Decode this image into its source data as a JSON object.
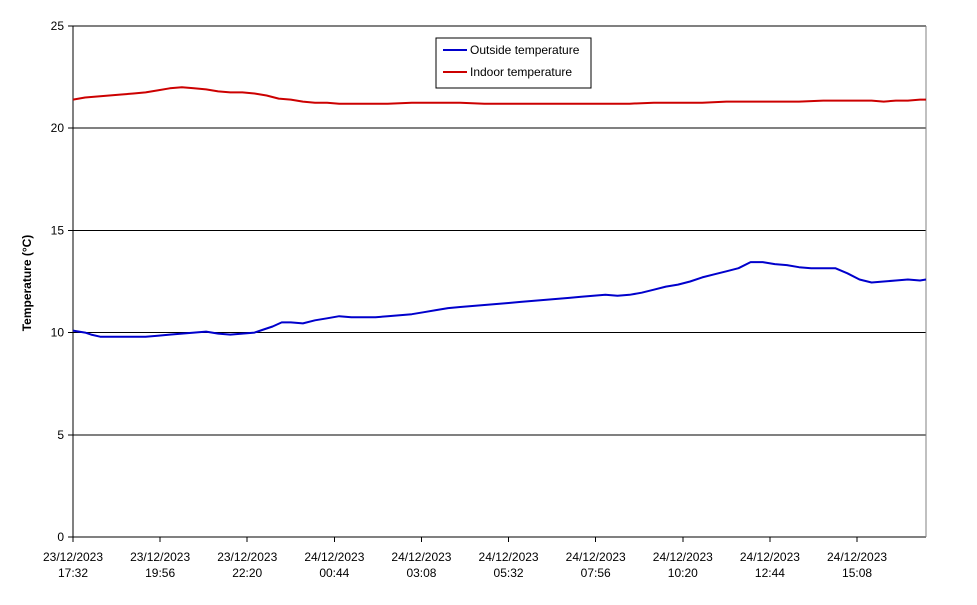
{
  "chart_data": {
    "type": "line",
    "title": "",
    "xlabel": "",
    "ylabel": "Temperature (°C)",
    "ylim": [
      0,
      25
    ],
    "yticks": [
      0,
      5,
      10,
      15,
      20,
      25
    ],
    "grid": "horizontal",
    "legend_position": "top-center",
    "x_tick_labels": [
      [
        "23/12/2023",
        "17:32"
      ],
      [
        "23/12/2023",
        "19:56"
      ],
      [
        "23/12/2023",
        "22:20"
      ],
      [
        "24/12/2023",
        "00:44"
      ],
      [
        "24/12/2023",
        "03:08"
      ],
      [
        "24/12/2023",
        "05:32"
      ],
      [
        "24/12/2023",
        "07:56"
      ],
      [
        "24/12/2023",
        "10:20"
      ],
      [
        "24/12/2023",
        "12:44"
      ],
      [
        "24/12/2023",
        "15:08"
      ]
    ],
    "x_range_minutes": [
      0,
      1410
    ],
    "x_tick_step_minutes": 144,
    "series": [
      {
        "name": "Outside temperature",
        "color": "#0000cc",
        "points": [
          [
            0,
            10.1
          ],
          [
            20,
            10.0
          ],
          [
            30,
            9.9
          ],
          [
            45,
            9.8
          ],
          [
            60,
            9.8
          ],
          [
            80,
            9.8
          ],
          [
            100,
            9.8
          ],
          [
            120,
            9.8
          ],
          [
            140,
            9.85
          ],
          [
            160,
            9.9
          ],
          [
            180,
            9.95
          ],
          [
            200,
            10.0
          ],
          [
            220,
            10.05
          ],
          [
            240,
            9.95
          ],
          [
            260,
            9.9
          ],
          [
            280,
            9.95
          ],
          [
            300,
            10.0
          ],
          [
            315,
            10.15
          ],
          [
            330,
            10.3
          ],
          [
            345,
            10.5
          ],
          [
            360,
            10.5
          ],
          [
            380,
            10.45
          ],
          [
            400,
            10.6
          ],
          [
            420,
            10.7
          ],
          [
            440,
            10.8
          ],
          [
            460,
            10.75
          ],
          [
            480,
            10.75
          ],
          [
            500,
            10.75
          ],
          [
            520,
            10.8
          ],
          [
            540,
            10.85
          ],
          [
            560,
            10.9
          ],
          [
            580,
            11.0
          ],
          [
            600,
            11.1
          ],
          [
            620,
            11.2
          ],
          [
            640,
            11.25
          ],
          [
            660,
            11.3
          ],
          [
            680,
            11.35
          ],
          [
            700,
            11.4
          ],
          [
            720,
            11.45
          ],
          [
            740,
            11.5
          ],
          [
            760,
            11.55
          ],
          [
            780,
            11.6
          ],
          [
            800,
            11.65
          ],
          [
            820,
            11.7
          ],
          [
            840,
            11.75
          ],
          [
            860,
            11.8
          ],
          [
            880,
            11.85
          ],
          [
            900,
            11.8
          ],
          [
            920,
            11.85
          ],
          [
            940,
            11.95
          ],
          [
            960,
            12.1
          ],
          [
            980,
            12.25
          ],
          [
            1000,
            12.35
          ],
          [
            1020,
            12.5
          ],
          [
            1040,
            12.7
          ],
          [
            1060,
            12.85
          ],
          [
            1080,
            13.0
          ],
          [
            1100,
            13.15
          ],
          [
            1120,
            13.45
          ],
          [
            1140,
            13.45
          ],
          [
            1160,
            13.35
          ],
          [
            1180,
            13.3
          ],
          [
            1200,
            13.2
          ],
          [
            1220,
            13.15
          ],
          [
            1240,
            13.15
          ],
          [
            1260,
            13.15
          ],
          [
            1280,
            12.9
          ],
          [
            1300,
            12.6
          ],
          [
            1320,
            12.45
          ],
          [
            1340,
            12.5
          ],
          [
            1360,
            12.55
          ],
          [
            1380,
            12.6
          ],
          [
            1400,
            12.55
          ],
          [
            1410,
            12.6
          ]
        ]
      },
      {
        "name": "Indoor temperature",
        "color": "#cc0000",
        "points": [
          [
            0,
            21.4
          ],
          [
            20,
            21.5
          ],
          [
            40,
            21.55
          ],
          [
            60,
            21.6
          ],
          [
            80,
            21.65
          ],
          [
            100,
            21.7
          ],
          [
            120,
            21.75
          ],
          [
            140,
            21.85
          ],
          [
            160,
            21.95
          ],
          [
            180,
            22.0
          ],
          [
            200,
            21.95
          ],
          [
            220,
            21.9
          ],
          [
            240,
            21.8
          ],
          [
            260,
            21.75
          ],
          [
            280,
            21.75
          ],
          [
            300,
            21.7
          ],
          [
            320,
            21.6
          ],
          [
            340,
            21.45
          ],
          [
            360,
            21.4
          ],
          [
            380,
            21.3
          ],
          [
            400,
            21.25
          ],
          [
            420,
            21.25
          ],
          [
            440,
            21.2
          ],
          [
            460,
            21.2
          ],
          [
            480,
            21.2
          ],
          [
            520,
            21.2
          ],
          [
            560,
            21.25
          ],
          [
            600,
            21.25
          ],
          [
            640,
            21.25
          ],
          [
            680,
            21.2
          ],
          [
            720,
            21.2
          ],
          [
            760,
            21.2
          ],
          [
            800,
            21.2
          ],
          [
            840,
            21.2
          ],
          [
            880,
            21.2
          ],
          [
            920,
            21.2
          ],
          [
            960,
            21.25
          ],
          [
            1000,
            21.25
          ],
          [
            1040,
            21.25
          ],
          [
            1080,
            21.3
          ],
          [
            1120,
            21.3
          ],
          [
            1160,
            21.3
          ],
          [
            1200,
            21.3
          ],
          [
            1240,
            21.35
          ],
          [
            1280,
            21.35
          ],
          [
            1320,
            21.35
          ],
          [
            1340,
            21.3
          ],
          [
            1360,
            21.35
          ],
          [
            1380,
            21.35
          ],
          [
            1400,
            21.4
          ],
          [
            1410,
            21.4
          ]
        ]
      }
    ]
  }
}
